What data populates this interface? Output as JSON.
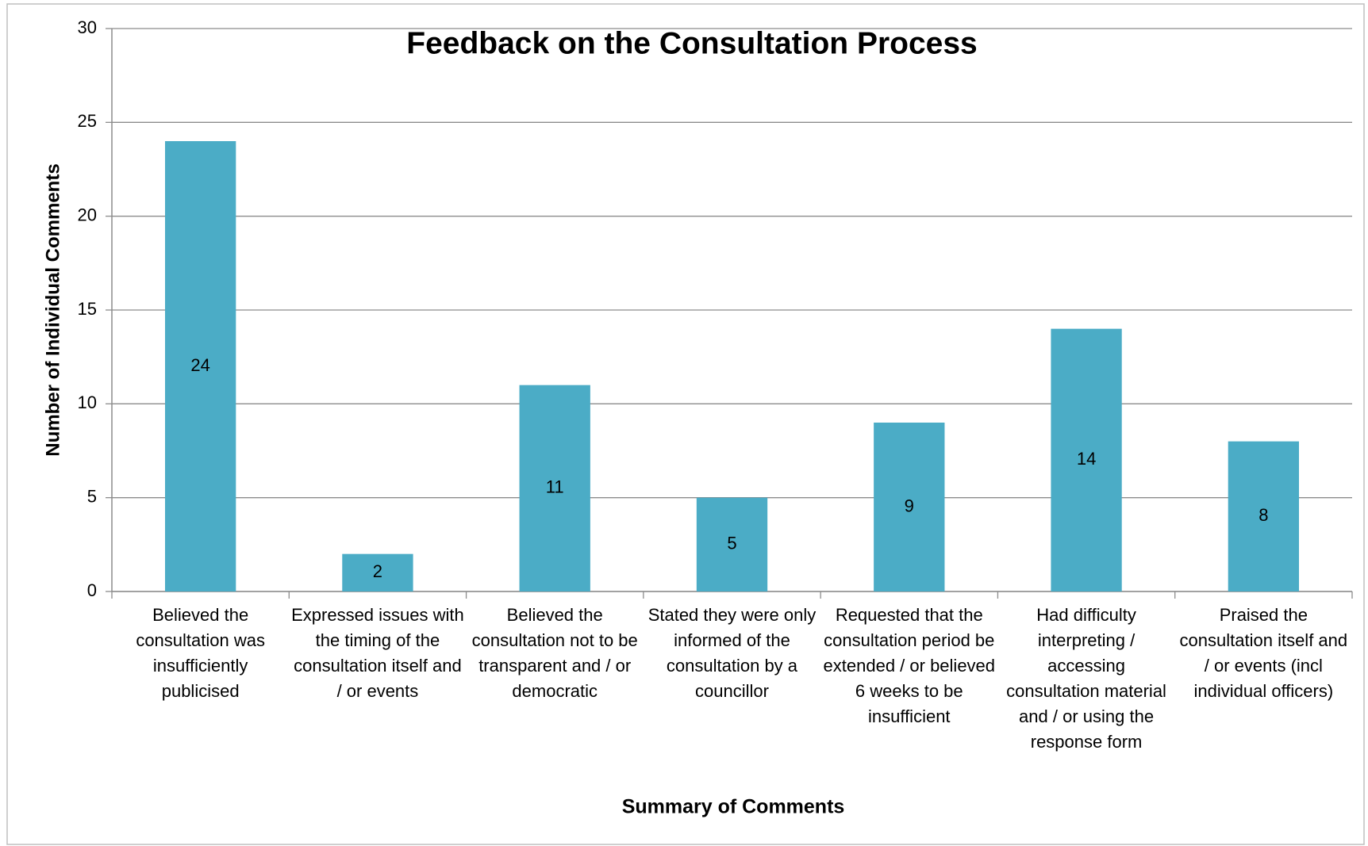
{
  "chart_data": {
    "type": "bar",
    "title": "Feedback on the Consultation Process",
    "x_label": "Summary of Comments",
    "y_label": "Number of Individual Comments",
    "categories": [
      "Believed the consultation was insufficiently publicised",
      "Expressed issues with the timing of the consultation itself and / or events",
      "Believed the consultation not to be transparent and / or democratic",
      "Stated they were only informed of the consultation by a councillor",
      "Requested that the consultation period be extended / or believed 6 weeks to be insufficient",
      "Had difficulty interpreting / accessing consultation material and / or using the response form",
      "Praised the consultation itself and / or events (incl individual officers)"
    ],
    "values": [
      24,
      2,
      11,
      5,
      9,
      14,
      8
    ],
    "color": "#4bacc6",
    "ylim": [
      0,
      30
    ],
    "yticks": [
      0,
      5,
      10,
      15,
      20,
      25,
      30
    ],
    "grid": true
  }
}
